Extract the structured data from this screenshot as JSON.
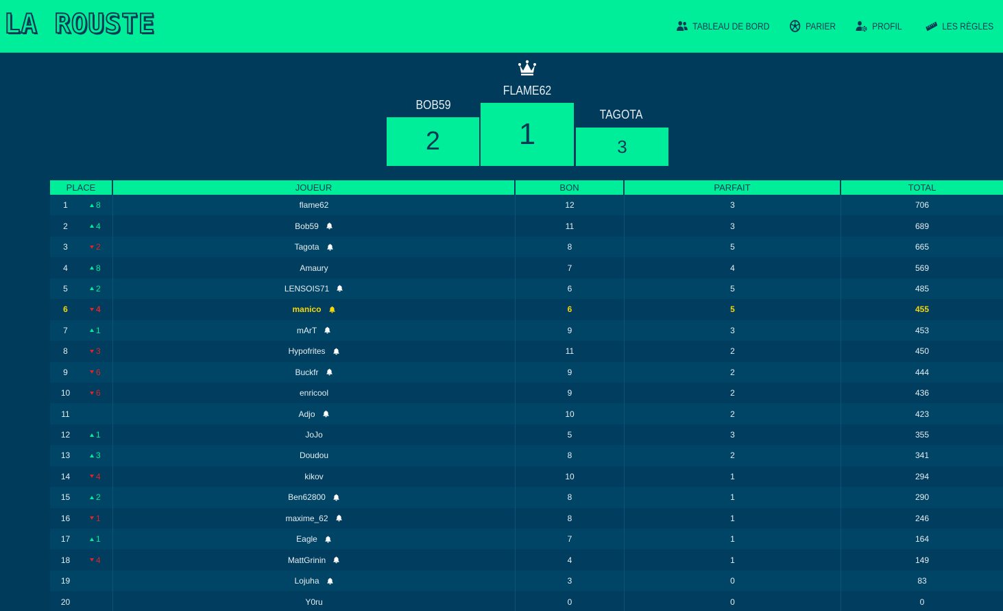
{
  "app": {
    "logo": "LA ROUSTE"
  },
  "nav": {
    "items": [
      {
        "label": "TABLEAU DE BORD",
        "icon": "users-icon"
      },
      {
        "label": "PARIER",
        "icon": "soccer-ball-icon"
      },
      {
        "label": "PROFIL",
        "icon": "user-cog-icon"
      },
      {
        "label": "LES RÈGLES",
        "icon": "ruler-icon"
      }
    ]
  },
  "podium": {
    "first": {
      "name": "FLAME62",
      "rank": "1"
    },
    "second": {
      "name": "BOB59",
      "rank": "2"
    },
    "third": {
      "name": "TAGOTA",
      "rank": "3"
    }
  },
  "table": {
    "headers": {
      "place": "PLACE",
      "player": "JOUEUR",
      "bon": "BON",
      "parfait": "PARFAIT",
      "total": "TOTAL"
    },
    "rows": [
      {
        "place": "1",
        "trend": "up",
        "delta": "8",
        "player": "flame62",
        "bell": false,
        "bon": "12",
        "parfait": "3",
        "total": "706",
        "me": false
      },
      {
        "place": "2",
        "trend": "up",
        "delta": "4",
        "player": "Bob59",
        "bell": true,
        "bon": "11",
        "parfait": "3",
        "total": "689",
        "me": false
      },
      {
        "place": "3",
        "trend": "down",
        "delta": "2",
        "player": "Tagota",
        "bell": true,
        "bon": "8",
        "parfait": "5",
        "total": "665",
        "me": false
      },
      {
        "place": "4",
        "trend": "up",
        "delta": "8",
        "player": "Amaury",
        "bell": false,
        "bon": "7",
        "parfait": "4",
        "total": "569",
        "me": false
      },
      {
        "place": "5",
        "trend": "up",
        "delta": "2",
        "player": "LENSOIS71",
        "bell": true,
        "bon": "6",
        "parfait": "5",
        "total": "485",
        "me": false
      },
      {
        "place": "6",
        "trend": "down",
        "delta": "4",
        "player": "manico",
        "bell": true,
        "bon": "6",
        "parfait": "5",
        "total": "455",
        "me": true
      },
      {
        "place": "7",
        "trend": "up",
        "delta": "1",
        "player": "mArT",
        "bell": true,
        "bon": "9",
        "parfait": "3",
        "total": "453",
        "me": false
      },
      {
        "place": "8",
        "trend": "down",
        "delta": "3",
        "player": "Hypofrites",
        "bell": true,
        "bon": "11",
        "parfait": "2",
        "total": "450",
        "me": false
      },
      {
        "place": "9",
        "trend": "down",
        "delta": "6",
        "player": "Buckfr",
        "bell": true,
        "bon": "9",
        "parfait": "2",
        "total": "444",
        "me": false
      },
      {
        "place": "10",
        "trend": "down",
        "delta": "6",
        "player": "enricool",
        "bell": false,
        "bon": "9",
        "parfait": "2",
        "total": "436",
        "me": false
      },
      {
        "place": "11",
        "trend": "none",
        "delta": "",
        "player": "Adjo",
        "bell": true,
        "bon": "10",
        "parfait": "2",
        "total": "423",
        "me": false
      },
      {
        "place": "12",
        "trend": "up",
        "delta": "1",
        "player": "JoJo",
        "bell": false,
        "bon": "5",
        "parfait": "3",
        "total": "355",
        "me": false
      },
      {
        "place": "13",
        "trend": "up",
        "delta": "3",
        "player": "Doudou",
        "bell": false,
        "bon": "8",
        "parfait": "2",
        "total": "341",
        "me": false
      },
      {
        "place": "14",
        "trend": "down",
        "delta": "4",
        "player": "kikov",
        "bell": false,
        "bon": "10",
        "parfait": "1",
        "total": "294",
        "me": false
      },
      {
        "place": "15",
        "trend": "up",
        "delta": "2",
        "player": "Ben62800",
        "bell": true,
        "bon": "8",
        "parfait": "1",
        "total": "290",
        "me": false
      },
      {
        "place": "16",
        "trend": "down",
        "delta": "1",
        "player": "maxime_62",
        "bell": true,
        "bon": "8",
        "parfait": "1",
        "total": "246",
        "me": false
      },
      {
        "place": "17",
        "trend": "up",
        "delta": "1",
        "player": "Eagle",
        "bell": true,
        "bon": "7",
        "parfait": "1",
        "total": "164",
        "me": false
      },
      {
        "place": "18",
        "trend": "down",
        "delta": "4",
        "player": "MattGrinin",
        "bell": true,
        "bon": "4",
        "parfait": "1",
        "total": "149",
        "me": false
      },
      {
        "place": "19",
        "trend": "none",
        "delta": "",
        "player": "Lojuha",
        "bell": true,
        "bon": "3",
        "parfait": "0",
        "total": "83",
        "me": false
      },
      {
        "place": "20",
        "trend": "none",
        "delta": "",
        "player": "Y0ru",
        "bell": false,
        "bon": "0",
        "parfait": "0",
        "total": "0",
        "me": false
      }
    ]
  },
  "colors": {
    "background": "#003B5B",
    "accent": "#00EE9A",
    "text_dark": "#0B3A55",
    "up": "#00EE9A",
    "down": "#E0242A",
    "current_user": "#F5D60A"
  }
}
